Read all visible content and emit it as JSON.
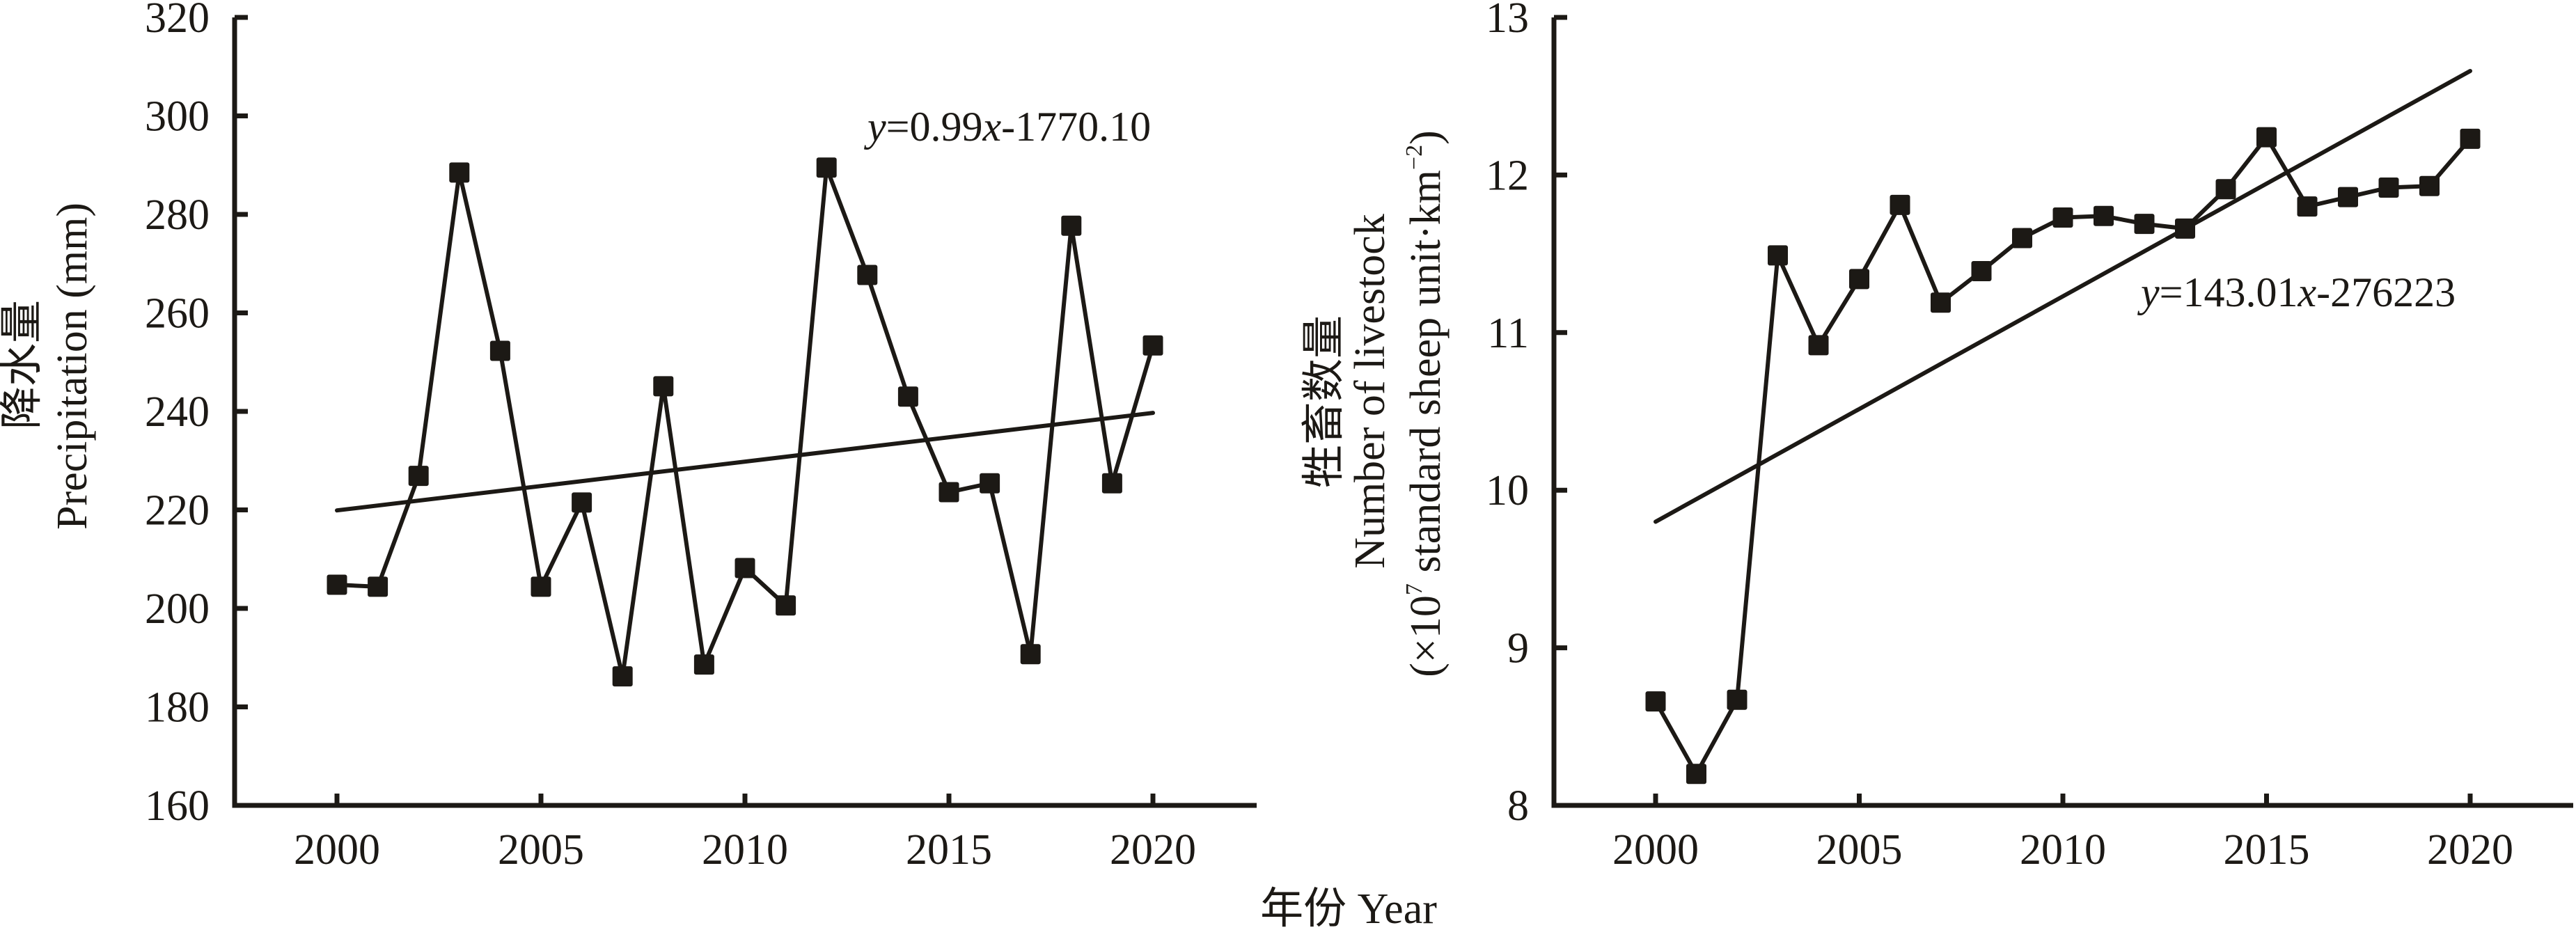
{
  "chart_data": [
    {
      "type": "line",
      "x": [
        2000,
        2001,
        2002,
        2003,
        2004,
        2005,
        2006,
        2007,
        2008,
        2009,
        2010,
        2011,
        2012,
        2013,
        2014,
        2015,
        2016,
        2017,
        2018,
        2019,
        2020
      ],
      "series": [
        {
          "name": "Precipitation",
          "values": [
            204.8,
            204.4,
            226.9,
            288.5,
            252.3,
            204.4,
            221.5,
            186.2,
            245.1,
            188.6,
            208.2,
            200.6,
            289.5,
            267.7,
            243.0,
            223.6,
            225.4,
            190.7,
            277.7,
            225.4,
            253.4
          ]
        }
      ],
      "trendline": {
        "x": [
          2000,
          2020
        ],
        "y": [
          219.9,
          239.7
        ],
        "equation": {
          "y": "y",
          "mid": "=0.99",
          "x": "x",
          "tail": "-1770.10"
        }
      },
      "xlabel": "年份 Year",
      "ylabel": {
        "cn": "降水量",
        "en": "Precipitation (mm)"
      },
      "xlim": [
        1997.5,
        2022.5
      ],
      "ylim": [
        160,
        320
      ],
      "xticks": [
        "2000",
        "2005",
        "2010",
        "2015",
        "2020"
      ],
      "yticks": [
        "160",
        "180",
        "200",
        "220",
        "240",
        "260",
        "280",
        "300",
        "320"
      ],
      "grid": false,
      "color": "#1c1915"
    },
    {
      "type": "line",
      "x": [
        2000,
        2001,
        2002,
        2003,
        2004,
        2005,
        2006,
        2007,
        2008,
        2009,
        2010,
        2011,
        2012,
        2013,
        2014,
        2015,
        2016,
        2017,
        2018,
        2019,
        2020
      ],
      "series": [
        {
          "name": "Number of livestock",
          "values": [
            8.66,
            8.2,
            8.67,
            11.49,
            10.92,
            11.34,
            11.81,
            11.19,
            11.39,
            11.6,
            11.73,
            11.74,
            11.69,
            11.66,
            11.91,
            12.24,
            11.8,
            11.86,
            11.92,
            11.93,
            12.23
          ]
        }
      ],
      "trendline": {
        "x": [
          2000,
          2020
        ],
        "y": [
          9.8,
          12.66
        ],
        "equation": {
          "y": "y",
          "mid": "=143.01",
          "x": "x",
          "tail": "-276223"
        }
      },
      "xlabel": "年份 Year",
      "ylabel": {
        "cn": "牲畜数量",
        "en": "Number of livestock",
        "unit_pre": "(×10",
        "unit_exp": "7",
        "unit_mid": " standard sheep unit·km",
        "unit_exp2": "−2",
        "unit_post": ")"
      },
      "xlim": [
        1997.5,
        2022.5
      ],
      "ylim": [
        8,
        13
      ],
      "xticks": [
        "2000",
        "2005",
        "2010",
        "2015",
        "2020"
      ],
      "yticks": [
        "8",
        "9",
        "10",
        "11",
        "12",
        "13"
      ],
      "grid": false,
      "color": "#1c1915"
    }
  ],
  "shared_xlabel": "年份 Year"
}
